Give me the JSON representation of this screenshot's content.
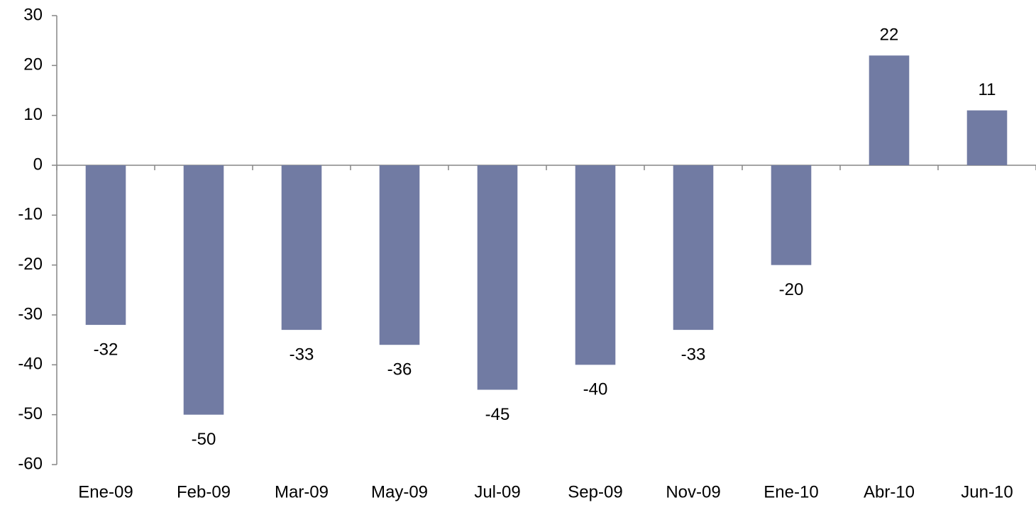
{
  "chart_data": {
    "type": "bar",
    "categories": [
      "Ene-09",
      "Feb-09",
      "Mar-09",
      "May-09",
      "Jul-09",
      "Sep-09",
      "Nov-09",
      "Ene-10",
      "Abr-10",
      "Jun-10"
    ],
    "values": [
      -32,
      -50,
      -33,
      -36,
      -45,
      -40,
      -33,
      -20,
      22,
      11
    ],
    "color": "#717ba3",
    "ylim": [
      -60,
      30
    ],
    "yticks": [
      -60,
      -50,
      -40,
      -30,
      -20,
      -10,
      0,
      10,
      20,
      30
    ],
    "grid": false
  }
}
